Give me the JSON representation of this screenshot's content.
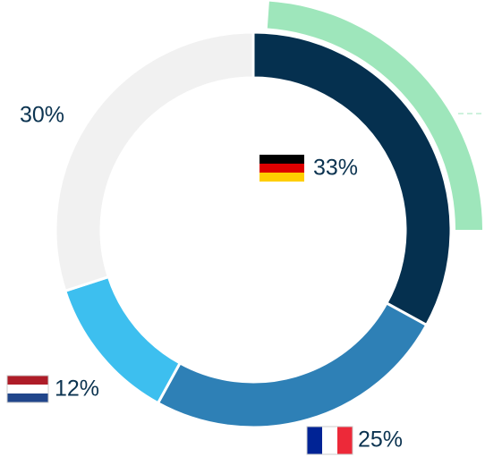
{
  "chart_data": {
    "type": "donut",
    "values": [
      33,
      25,
      12,
      30
    ],
    "value_labels": [
      "33%",
      "25%",
      "12%",
      "30%"
    ],
    "colors": [
      "#05304f",
      "#2e80b6",
      "#3dbfef",
      "#f1f1f1"
    ]
  }
}
